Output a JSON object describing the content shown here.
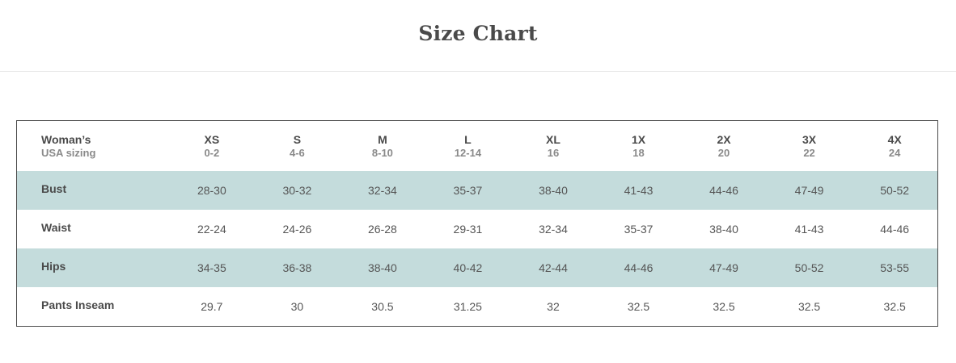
{
  "page": {
    "title": "Size Chart"
  },
  "table": {
    "header": {
      "label": "Woman’s",
      "sublabel": "USA sizing",
      "sizes": [
        {
          "name": "XS",
          "range": "0-2"
        },
        {
          "name": "S",
          "range": "4-6"
        },
        {
          "name": "M",
          "range": "8-10"
        },
        {
          "name": "L",
          "range": "12-14"
        },
        {
          "name": "XL",
          "range": "16"
        },
        {
          "name": "1X",
          "range": "18"
        },
        {
          "name": "2X",
          "range": "20"
        },
        {
          "name": "3X",
          "range": "22"
        },
        {
          "name": "4X",
          "range": "24"
        }
      ]
    },
    "rows": [
      {
        "label": "Bust",
        "values": [
          "28-30",
          "30-32",
          "32-34",
          "35-37",
          "38-40",
          "41-43",
          "44-46",
          "47-49",
          "50-52"
        ]
      },
      {
        "label": "Waist",
        "values": [
          "22-24",
          "24-26",
          "26-28",
          "29-31",
          "32-34",
          "35-37",
          "38-40",
          "41-43",
          "44-46"
        ]
      },
      {
        "label": "Hips",
        "values": [
          "34-35",
          "36-38",
          "38-40",
          "40-42",
          "42-44",
          "44-46",
          "47-49",
          "50-52",
          "53-55"
        ]
      },
      {
        "label": "Pants Inseam",
        "values": [
          "29.7",
          "30",
          "30.5",
          "31.25",
          "32",
          "32.5",
          "32.5",
          "32.5",
          "32.5"
        ]
      }
    ],
    "shaded_row_color": "#c4dcdc",
    "border_color": "#4a4a4a"
  }
}
